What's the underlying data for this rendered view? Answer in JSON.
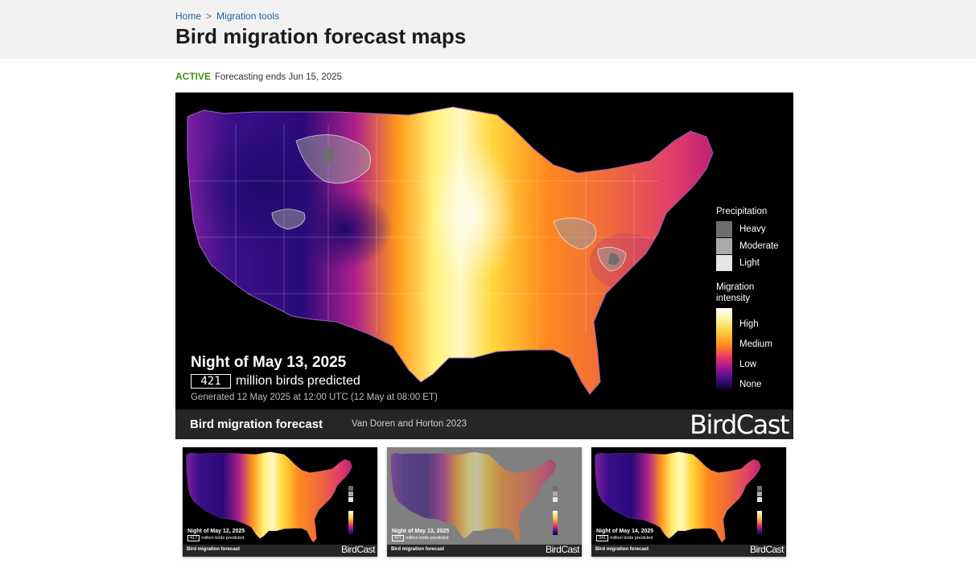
{
  "breadcrumb": {
    "home": "Home",
    "separator": ">",
    "section": "Migration tools"
  },
  "page": {
    "title": "Bird migration forecast maps"
  },
  "status": {
    "label": "ACTIVE",
    "detail": "Forecasting ends Jun 15, 2025"
  },
  "main_map": {
    "night": "Night of May 13, 2025",
    "count": "421",
    "count_suffix": "million birds predicted",
    "generated": "Generated 12 May 2025 at 12:00 UTC (12 May at 08:00 ET)",
    "footer_title": "Bird migration forecast",
    "citation": "Van Doren and Horton 2023",
    "brand": "BirdCast",
    "legend": {
      "precip_title": "Precipitation",
      "precip": [
        {
          "label": "Heavy",
          "color": "#6e6e6e"
        },
        {
          "label": "Moderate",
          "color": "#a9a9a9"
        },
        {
          "label": "Light",
          "color": "#e6e6e6"
        }
      ],
      "migration_title": "Migration intensity",
      "levels": [
        "High",
        "Medium",
        "Low",
        "None"
      ]
    }
  },
  "thumbnails": [
    {
      "night": "Night of May 12, 2025",
      "count": "417",
      "count_suffix": "million birds predicted",
      "footer_title": "Bird migration forecast",
      "brand": "BirdCast",
      "style": "color"
    },
    {
      "night": "Night of May 13, 2025",
      "count": "421",
      "count_suffix": "million birds predicted",
      "footer_title": "Bird migration forecast",
      "brand": "BirdCast",
      "style": "gray"
    },
    {
      "night": "Night of May 14, 2025",
      "count": "341",
      "count_suffix": "million birds predicted",
      "footer_title": "Bird migration forecast",
      "brand": "BirdCast",
      "style": "color"
    }
  ],
  "colors": {
    "accent_link": "#1d5fa3",
    "active_green": "#3f8f1c",
    "map_background": "#000000",
    "footer_bar": "#262626"
  }
}
